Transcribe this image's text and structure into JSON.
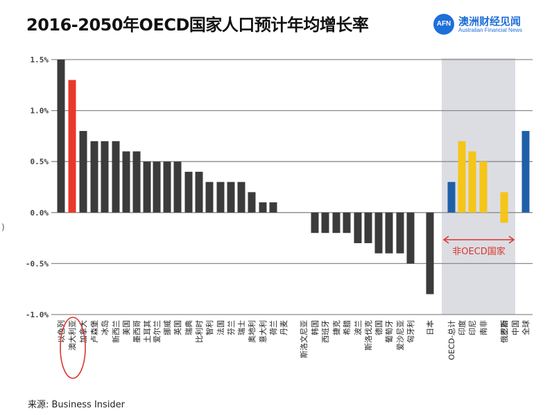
{
  "title": "2016-2050年OECD国家人口预计年均增长率",
  "logo": {
    "mark": "AFN",
    "name_cn": "澳洲财经见闻",
    "name_en": "Australian Financial News"
  },
  "source": "来源:  Business Insider",
  "edge_glyph": ")",
  "chart_data": {
    "type": "bar",
    "ylim": [
      -1.0,
      1.5
    ],
    "yticks": [
      "1.5%",
      "1.0%",
      "0.5%",
      "0.0%",
      "-0.5%",
      "-1.0%"
    ],
    "grid": true,
    "categories": [
      "以色列",
      "澳大利亚",
      "加拿大",
      "卢森堡",
      "冰岛",
      "新西兰",
      "美国",
      "墨西哥",
      "土耳其",
      "爱尔兰",
      "挪威",
      "英国",
      "瑞典",
      "比利时",
      "智利",
      "法国",
      "芬兰",
      "瑞士",
      "奥地利",
      "意大利",
      "荷兰",
      "丹麦",
      "斯洛文尼亚",
      "韩国",
      "西班牙",
      "捷克",
      "希腊",
      "波兰",
      "斯洛伐克",
      "德国",
      "葡萄牙",
      "爱沙尼亚",
      "匈牙利",
      "日本",
      "OECD-总计",
      "印度",
      "印尼",
      "南非",
      "巴西",
      "俄罗斯",
      "中国",
      "全球"
    ],
    "values": [
      1.5,
      1.3,
      0.8,
      0.7,
      0.7,
      0.7,
      0.6,
      0.6,
      0.5,
      0.5,
      0.5,
      0.5,
      0.4,
      0.4,
      0.3,
      0.3,
      0.3,
      0.3,
      0.2,
      0.1,
      0.1,
      0.0,
      0.0,
      -0.2,
      -0.2,
      -0.2,
      -0.2,
      -0.3,
      -0.3,
      -0.4,
      -0.4,
      -0.4,
      -0.5,
      -0.8,
      0.3,
      0.7,
      0.6,
      0.5,
      0.2,
      -0.1,
      0.0,
      0.8
    ],
    "colors": {
      "default": "#3b3b3b",
      "australia": "#e8392b",
      "oecd_total": "#1f5fa8",
      "global": "#1f5fa8",
      "non_oecd": "#f5c518",
      "non_oecd_band": "#dcdde3",
      "highlight_circle": "#d9342b"
    },
    "highlight_category": "澳大利亚",
    "non_oecd_label": "非OECD国家",
    "non_oecd_categories": [
      "印度",
      "印尼",
      "南非",
      "巴西",
      "俄罗斯",
      "中国"
    ]
  }
}
